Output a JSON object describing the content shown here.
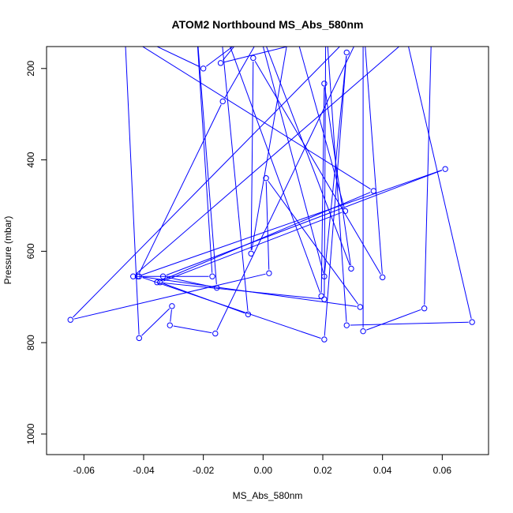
{
  "chart_data": {
    "type": "line",
    "title": "ATOM2 Northbound MS_Abs_580nm",
    "xlabel": "MS_Abs_580nm",
    "ylabel": "Pressure (mbar)",
    "xlim": [
      -0.0725,
      0.0755
    ],
    "ylim": [
      1045,
      152
    ],
    "y_reversed": true,
    "grid": false,
    "legend": "none",
    "x_ticks": [
      -0.06,
      -0.04,
      -0.02,
      0.0,
      0.02,
      0.04,
      0.06
    ],
    "x_tick_labels": [
      "-0.06",
      "-0.04",
      "-0.02",
      "0.00",
      "0.02",
      "0.04",
      "0.06"
    ],
    "y_ticks": [
      200,
      400,
      600,
      800,
      1000
    ],
    "y_tick_labels": [
      "200",
      "400",
      "600",
      "800",
      "1000"
    ],
    "color": "#0000ff",
    "series": [
      {
        "points": [
          {
            "x": -0.0465,
            "y": 90,
            "marker": false
          },
          {
            "x": -0.0415,
            "y": 790,
            "marker": true
          },
          {
            "x": -0.0305,
            "y": 720,
            "marker": true
          },
          {
            "x": -0.0312,
            "y": 762,
            "marker": true
          },
          {
            "x": -0.016,
            "y": 780,
            "marker": true
          },
          {
            "x": 0.035,
            "y": 90,
            "marker": false
          },
          {
            "x": -0.0645,
            "y": 750,
            "marker": true
          },
          {
            "x": 0.002,
            "y": 648,
            "marker": true
          },
          {
            "x": 0.001,
            "y": 440,
            "marker": true
          },
          {
            "x": 0.0325,
            "y": 722,
            "marker": true
          },
          {
            "x": -0.0415,
            "y": 655,
            "marker": true
          },
          {
            "x": 0.0205,
            "y": 793,
            "marker": true
          },
          {
            "x": 0.028,
            "y": 165,
            "marker": true
          },
          {
            "x": 0.0205,
            "y": 655,
            "marker": true
          },
          {
            "x": -0.0025,
            "y": 90,
            "marker": false
          },
          {
            "x": 0.0295,
            "y": 638,
            "marker": true
          },
          {
            "x": 0.0205,
            "y": 233,
            "marker": true
          },
          {
            "x": 0.0195,
            "y": 698,
            "marker": true
          },
          {
            "x": -0.0145,
            "y": 90,
            "marker": false
          },
          {
            "x": -0.005,
            "y": 738,
            "marker": true
          },
          {
            "x": -0.0345,
            "y": 668,
            "marker": true
          },
          {
            "x": 0.0275,
            "y": 512,
            "marker": true
          },
          {
            "x": 0.0095,
            "y": 90,
            "marker": false
          },
          {
            "x": -0.004,
            "y": 605,
            "marker": true
          },
          {
            "x": -0.0033,
            "y": 177,
            "marker": true
          },
          {
            "x": 0.04,
            "y": 657,
            "marker": true
          },
          {
            "x": 0.0335,
            "y": 90,
            "marker": false
          },
          {
            "x": 0.0335,
            "y": 775,
            "marker": true
          },
          {
            "x": 0.054,
            "y": 725,
            "marker": true
          },
          {
            "x": 0.0565,
            "y": 90,
            "marker": false
          },
          {
            "x": -0.0435,
            "y": 655,
            "marker": true
          },
          {
            "x": -0.017,
            "y": 655,
            "marker": true
          },
          {
            "x": -0.0225,
            "y": 90,
            "marker": false
          },
          {
            "x": -0.0155,
            "y": 680,
            "marker": true
          },
          {
            "x": -0.0335,
            "y": 655,
            "marker": true
          },
          {
            "x": 0.061,
            "y": 420,
            "marker": true
          },
          {
            "x": -0.042,
            "y": 655,
            "marker": true
          },
          {
            "x": -0.0135,
            "y": 272,
            "marker": true
          },
          {
            "x": 0.0025,
            "y": 90,
            "marker": false
          },
          {
            "x": -0.02,
            "y": 200,
            "marker": true
          },
          {
            "x": -0.0555,
            "y": 90,
            "marker": false
          },
          {
            "x": 0.037,
            "y": 468,
            "marker": true
          },
          {
            "x": -0.0355,
            "y": 668,
            "marker": true
          },
          {
            "x": 0.0205,
            "y": 705,
            "marker": true
          },
          {
            "x": 0.021,
            "y": 90,
            "marker": false
          },
          {
            "x": 0.028,
            "y": 762,
            "marker": true
          },
          {
            "x": 0.07,
            "y": 755,
            "marker": true
          },
          {
            "x": 0.0465,
            "y": 90,
            "marker": false
          },
          {
            "x": -0.0142,
            "y": 188,
            "marker": true
          },
          {
            "x": -0.002,
            "y": 90,
            "marker": false
          }
        ]
      }
    ]
  }
}
